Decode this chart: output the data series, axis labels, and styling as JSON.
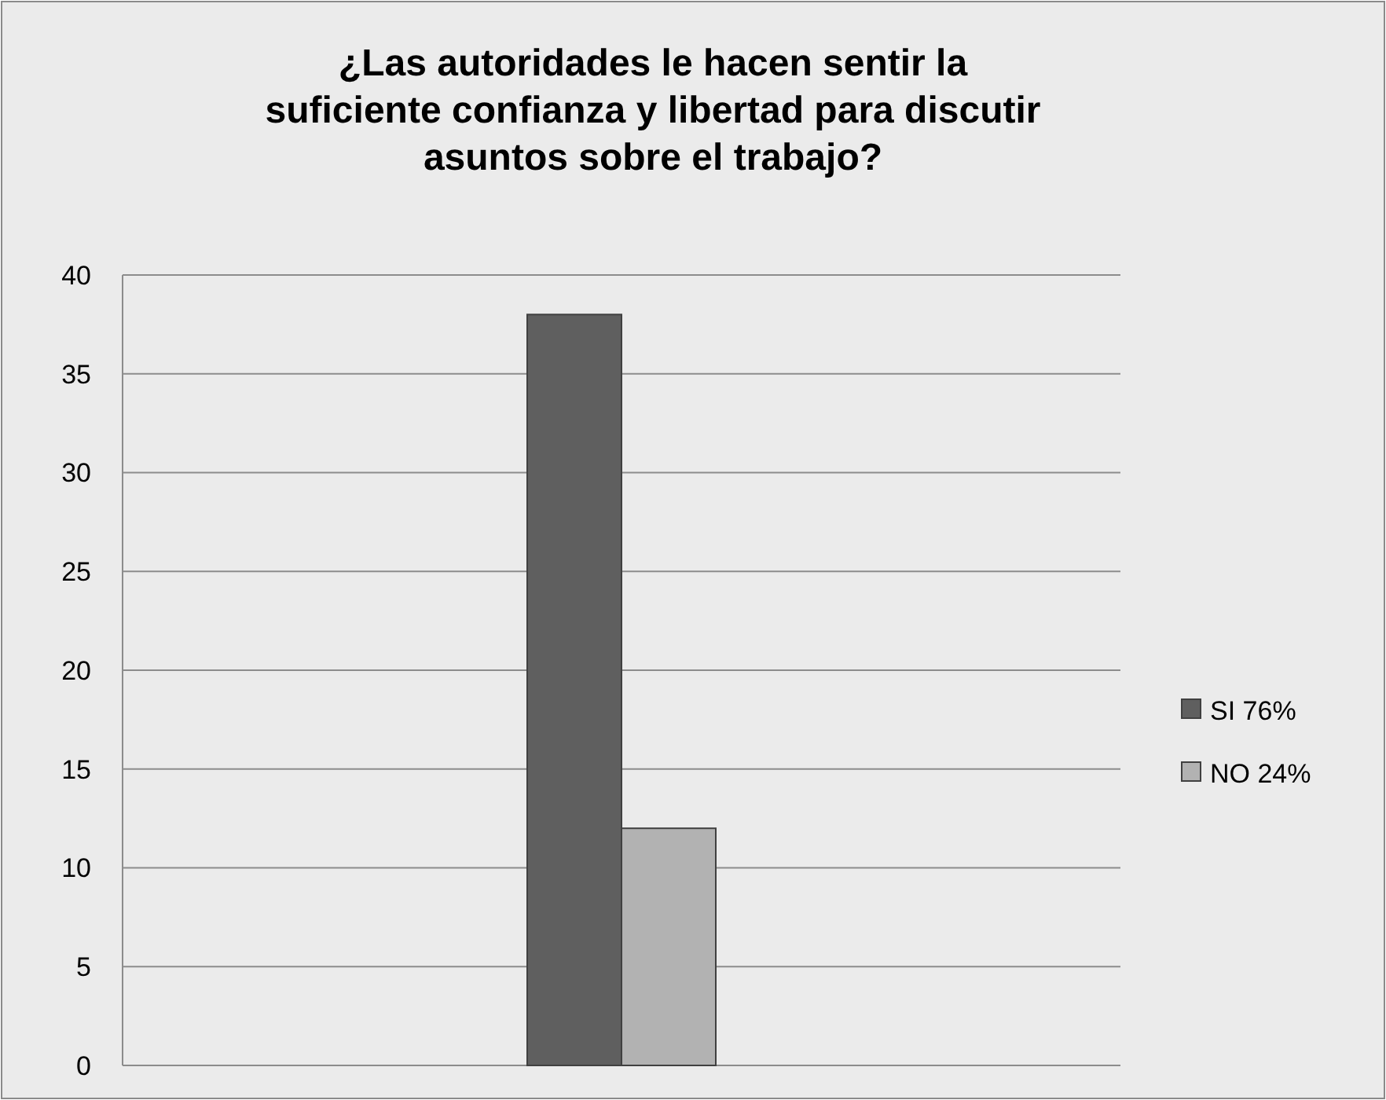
{
  "chart_data": {
    "type": "bar",
    "title": "¿Las autoridades le hacen sentir la suficiente confianza y libertad para discutir asuntos sobre el trabajo?",
    "categories": [
      null
    ],
    "series": [
      {
        "name": "SI 76%",
        "color": "#5f5f5f",
        "values": [
          38
        ]
      },
      {
        "name": "NO 24%",
        "color": "#b2b2b2",
        "values": [
          12
        ]
      }
    ],
    "ylim": [
      0,
      40
    ],
    "yticks": [
      0,
      5,
      10,
      15,
      20,
      25,
      30,
      35,
      40
    ],
    "grid": "y",
    "legend": "right"
  }
}
